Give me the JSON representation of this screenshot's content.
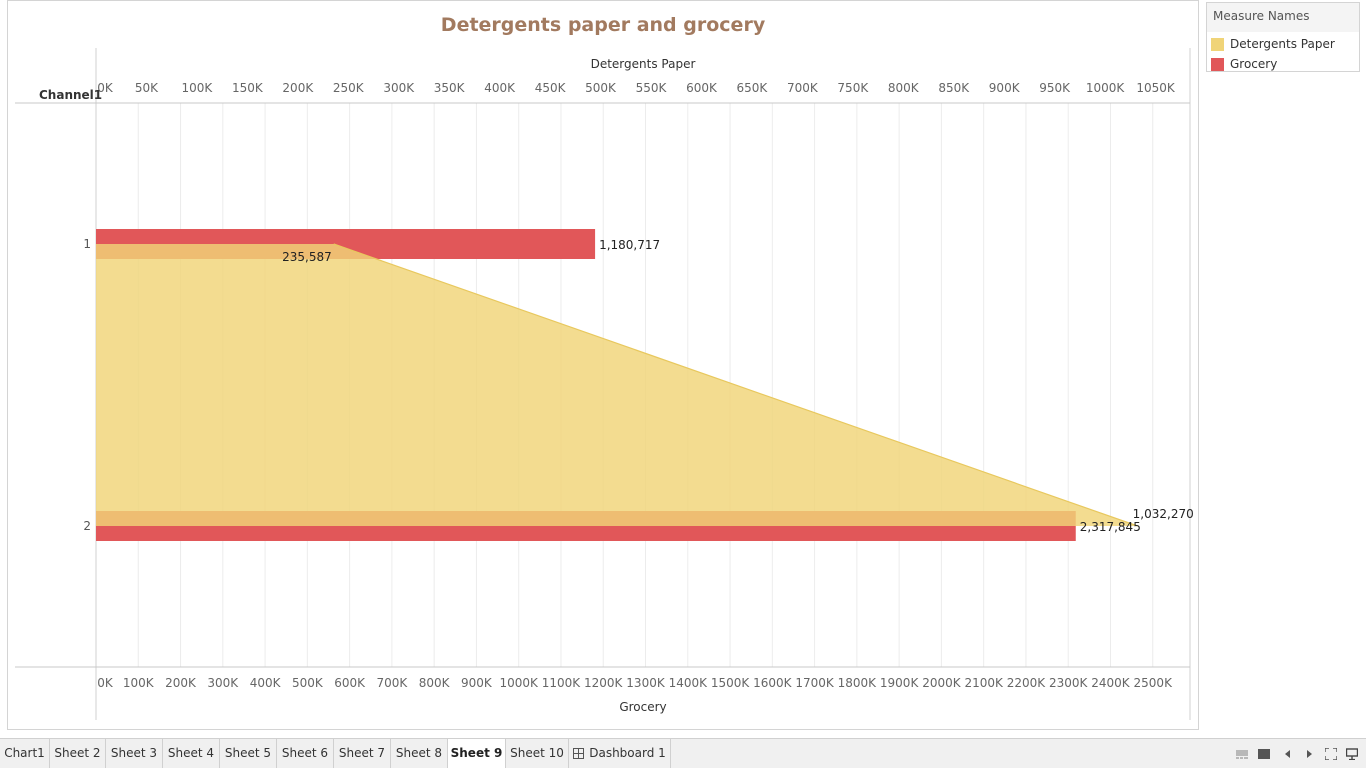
{
  "title": "Detergents paper and grocery",
  "legend": {
    "title": "Measure Names",
    "items": [
      {
        "label": "Detergents Paper",
        "color": "#f0d478"
      },
      {
        "label": "Grocery",
        "color": "#e15759"
      }
    ]
  },
  "chart_data": {
    "type": "bar",
    "title": "Detergents paper and grocery",
    "row_header": "Channel1",
    "categories": [
      "1",
      "2"
    ],
    "top_axis": {
      "label": "Detergents Paper",
      "range": [
        0,
        1080000
      ],
      "ticks": [
        "0K",
        "50K",
        "100K",
        "150K",
        "200K",
        "250K",
        "300K",
        "350K",
        "400K",
        "450K",
        "500K",
        "550K",
        "600K",
        "650K",
        "700K",
        "750K",
        "800K",
        "850K",
        "900K",
        "950K",
        "1000K",
        "1050K"
      ]
    },
    "bottom_axis": {
      "label": "Grocery",
      "range": [
        0,
        2580000
      ],
      "ticks": [
        "0K",
        "100K",
        "200K",
        "300K",
        "400K",
        "500K",
        "600K",
        "700K",
        "800K",
        "900K",
        "1000K",
        "1100K",
        "1200K",
        "1300K",
        "1400K",
        "1500K",
        "1600K",
        "1700K",
        "1800K",
        "1900K",
        "2000K",
        "2100K",
        "2200K",
        "2300K",
        "2400K",
        "2500K"
      ]
    },
    "series": [
      {
        "name": "Detergents Paper",
        "axis": "top",
        "color": "#f0d478",
        "values": [
          235587,
          1032270
        ],
        "labels": [
          "235,587",
          "1,032,270"
        ]
      },
      {
        "name": "Grocery",
        "axis": "bottom",
        "color": "#e15759",
        "values": [
          1180717,
          2317845
        ],
        "labels": [
          "1,180,717",
          "2,317,845"
        ]
      }
    ],
    "grid": true,
    "legend_position": "right"
  },
  "tabs": [
    {
      "label": "Chart1",
      "active": false
    },
    {
      "label": "Sheet 2",
      "active": false
    },
    {
      "label": "Sheet 3",
      "active": false
    },
    {
      "label": "Sheet 4",
      "active": false
    },
    {
      "label": "Sheet 5",
      "active": false
    },
    {
      "label": "Sheet 6",
      "active": false
    },
    {
      "label": "Sheet 7",
      "active": false
    },
    {
      "label": "Sheet 8",
      "active": false
    },
    {
      "label": "Sheet 9",
      "active": true
    },
    {
      "label": "Sheet 10",
      "active": false
    },
    {
      "label": "Dashboard 1",
      "active": false,
      "icon": "dashboard-grid-icon"
    }
  ],
  "toolbar": {
    "icons": [
      "filmstrip-view-icon",
      "single-sheet-view-icon",
      "previous-sheet-icon",
      "next-sheet-icon",
      "fullscreen-icon",
      "presentation-mode-icon"
    ]
  }
}
